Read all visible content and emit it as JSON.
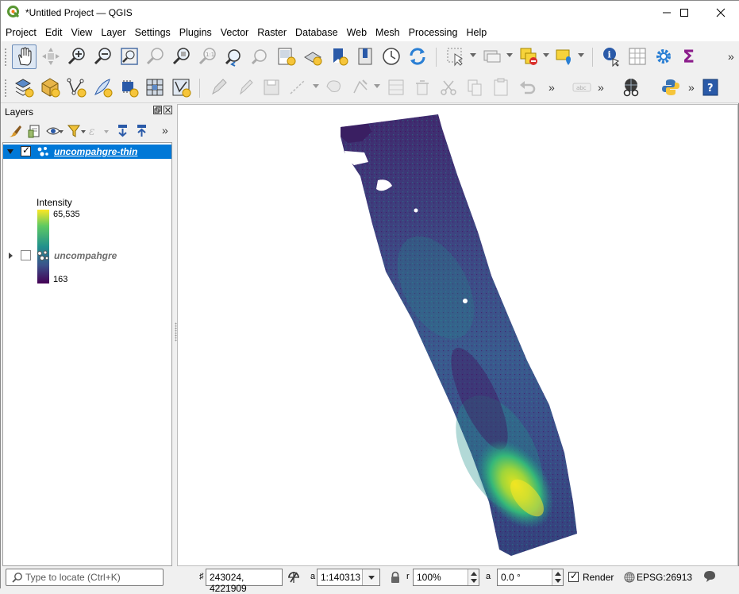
{
  "window": {
    "title": "*Untitled Project — QGIS"
  },
  "menubar": {
    "items": [
      "Project",
      "Edit",
      "View",
      "Layer",
      "Settings",
      "Plugins",
      "Vector",
      "Raster",
      "Database",
      "Web",
      "Mesh",
      "Processing",
      "Help"
    ]
  },
  "layers_panel": {
    "title": "Layers",
    "layers": [
      {
        "name": "uncompahgre-thin",
        "checked": true,
        "expanded": true,
        "selected": true
      },
      {
        "name": "uncompahgre",
        "checked": false,
        "expanded": false,
        "selected": false
      }
    ],
    "legend": {
      "title": "Intensity",
      "max_label": "65,535",
      "min_label": "163",
      "ramp_colors": [
        "#fde725",
        "#5ec962",
        "#21918c",
        "#3b528b",
        "#440154"
      ]
    }
  },
  "statusbar": {
    "locator_placeholder": "Type to locate (Ctrl+K)",
    "coordinate_label": "♯",
    "coordinate": "243024, 4221909",
    "scale_label": "a",
    "scale": "1:140313",
    "magnifier_label": "r",
    "magnifier": "100%",
    "rotation_label": "a",
    "rotation": "0.0 °",
    "render_label": "Render",
    "render_checked": true,
    "crs": "EPSG:26913"
  },
  "colors": {
    "selection": "#0078d7",
    "point_cloud_dark": "#440154",
    "point_cloud_mid": "#3b528b",
    "point_cloud_teal": "#21918c",
    "point_cloud_green": "#5ec962",
    "point_cloud_yellow": "#fde725"
  }
}
